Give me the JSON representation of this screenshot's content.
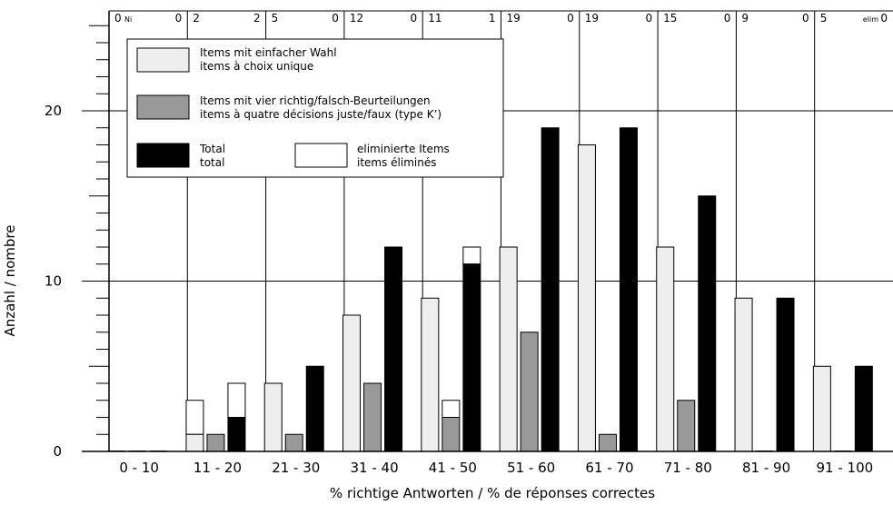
{
  "chart_data": {
    "type": "bar",
    "xlabel": "% richtige Antworten / % de réponses correctes",
    "ylabel": "Anzahl / nombre",
    "ylim": [
      0,
      25
    ],
    "yticks": [
      0,
      10,
      20
    ],
    "categories": [
      "0 - 10",
      "11 - 20",
      "21 - 30",
      "31 - 40",
      "41 - 50",
      "51 - 60",
      "61 - 70",
      "71 - 80",
      "81 - 90",
      "91 - 100"
    ],
    "series": [
      {
        "name": "Items mit einfacher Wahl / items à choix unique",
        "values": [
          0,
          1,
          4,
          8,
          9,
          12,
          18,
          12,
          9,
          5
        ],
        "eliminated": [
          0,
          2,
          0,
          0,
          0,
          0,
          0,
          0,
          0,
          0
        ],
        "color": "#eeeeee"
      },
      {
        "name": "Items mit vier richtig/falsch-Beurteilungen / items à quatre décisions juste/faux (type K’)",
        "values": [
          0,
          1,
          1,
          4,
          2,
          7,
          1,
          3,
          0,
          0
        ],
        "eliminated": [
          0,
          0,
          0,
          0,
          1,
          0,
          0,
          0,
          0,
          0
        ],
        "color": "#999999"
      },
      {
        "name": "Total / total",
        "values": [
          0,
          2,
          5,
          12,
          11,
          19,
          19,
          15,
          9,
          5
        ],
        "eliminated": [
          0,
          2,
          0,
          0,
          1,
          0,
          0,
          0,
          0,
          0
        ],
        "color": "#000000"
      }
    ],
    "top_row": {
      "totals": [
        "0",
        "2",
        "5",
        "12",
        "11",
        "19",
        "19",
        "15",
        "9",
        "5"
      ],
      "eliminated": [
        "0",
        "2",
        "0",
        "0",
        "1",
        "0",
        "0",
        "0",
        "0",
        "0"
      ],
      "first_label": "Ni",
      "last_label": "elim"
    },
    "legend": {
      "placement": "top-left",
      "entries": [
        {
          "line1": "Items mit einfacher Wahl",
          "line2": "items à choix unique",
          "color": "#eeeeee"
        },
        {
          "line1": "Items mit vier richtig/falsch-Beurteilungen",
          "line2": "items à quatre décisions juste/faux (type K’)",
          "color": "#999999"
        },
        {
          "line1": "Total",
          "line2": "total",
          "color": "#000000"
        },
        {
          "line1": "eliminierte Items",
          "line2": "items éliminés",
          "color": "#ffffff"
        }
      ]
    },
    "grid": true
  }
}
